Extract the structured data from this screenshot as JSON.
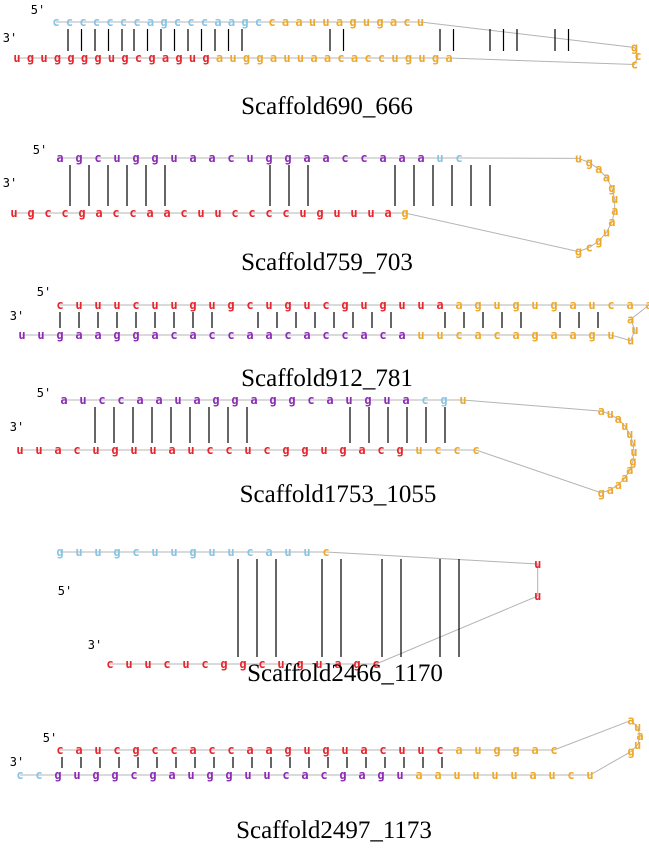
{
  "colors": {
    "red": "#e8262e",
    "purple": "#8c2bb5",
    "blue": "#88c4e4",
    "orange": "#eea92a",
    "backbone": "#b4b4b4",
    "pair": "#000000"
  },
  "structures": [
    {
      "label": "Scaffold690_666",
      "five_prime": "5'",
      "three_prime": "3'",
      "top": {
        "seq": [
          "c",
          "c",
          "c",
          "c",
          "c",
          "c",
          "c",
          "a",
          "g",
          "c",
          "c",
          "c",
          "a",
          "a",
          "g",
          "c",
          "c",
          "a",
          "a",
          "u",
          "u",
          "a",
          "g",
          "u",
          "g",
          "a",
          "c",
          "u"
        ],
        "colors": [
          "blue",
          "blue",
          "blue",
          "blue",
          "blue",
          "blue",
          "blue",
          "blue",
          "blue",
          "blue",
          "blue",
          "blue",
          "blue",
          "blue",
          "blue",
          "blue",
          "orange",
          "orange",
          "orange",
          "orange",
          "orange",
          "orange",
          "orange",
          "orange",
          "orange",
          "orange",
          "orange",
          "orange"
        ]
      },
      "bottom": {
        "seq": [
          "u",
          "g",
          "u",
          "g",
          "g",
          "g",
          "g",
          "u",
          "g",
          "c",
          "g",
          "a",
          "g",
          "u",
          "g",
          "a",
          "u",
          "g",
          "g",
          "a",
          "u",
          "u",
          "a",
          "a",
          "c",
          "a",
          "c",
          "c",
          "u",
          "g",
          "u",
          "g",
          "a"
        ],
        "colors": [
          "red",
          "red",
          "red",
          "red",
          "red",
          "red",
          "red",
          "red",
          "red",
          "red",
          "red",
          "red",
          "red",
          "red",
          "red",
          "orange",
          "orange",
          "orange",
          "orange",
          "orange",
          "orange",
          "orange",
          "orange",
          "orange",
          "orange",
          "orange",
          "orange",
          "orange",
          "orange",
          "orange",
          "orange",
          "orange",
          "orange"
        ]
      },
      "loop": {
        "seq": [
          "g",
          "c",
          "c"
        ],
        "colors": [
          "orange",
          "orange",
          "orange"
        ]
      }
    },
    {
      "label": "Scaffold759_703",
      "five_prime": "5'",
      "three_prime": "3'",
      "top": {
        "seq": [
          "a",
          "g",
          "c",
          "u",
          "g",
          "g",
          "u",
          "a",
          "a",
          "c",
          "u",
          "g",
          "g",
          "a",
          "a",
          "c",
          "c",
          "a",
          "a",
          "a",
          "u",
          "c"
        ],
        "colors": [
          "purple",
          "purple",
          "purple",
          "purple",
          "purple",
          "purple",
          "purple",
          "purple",
          "purple",
          "purple",
          "purple",
          "purple",
          "purple",
          "purple",
          "purple",
          "purple",
          "purple",
          "purple",
          "purple",
          "purple",
          "blue",
          "blue"
        ]
      },
      "bottom": {
        "seq": [
          "u",
          "g",
          "c",
          "c",
          "g",
          "a",
          "c",
          "c",
          "a",
          "a",
          "c",
          "u",
          "u",
          "c",
          "c",
          "c",
          "c",
          "u",
          "g",
          "u",
          "u",
          "u",
          "a",
          "g"
        ],
        "colors": [
          "red",
          "red",
          "red",
          "red",
          "red",
          "red",
          "red",
          "red",
          "red",
          "red",
          "red",
          "red",
          "red",
          "red",
          "red",
          "red",
          "red",
          "red",
          "red",
          "red",
          "red",
          "red",
          "red",
          "orange"
        ]
      },
      "loop": {
        "seq": [
          "u",
          "g",
          "a",
          "a",
          "g",
          "u",
          "a",
          "a",
          "u",
          "g",
          "c",
          "g"
        ],
        "colors": [
          "orange",
          "orange",
          "orange",
          "orange",
          "orange",
          "orange",
          "orange",
          "orange",
          "orange",
          "orange",
          "orange",
          "orange"
        ]
      }
    },
    {
      "label": "Scaffold912_781",
      "five_prime": "5'",
      "three_prime": "3'",
      "top": {
        "seq": [
          "c",
          "u",
          "u",
          "u",
          "c",
          "u",
          "u",
          "g",
          "u",
          "g",
          "c",
          "u",
          "g",
          "u",
          "c",
          "g",
          "u",
          "g",
          "u",
          "u",
          "a",
          "a",
          "g",
          "u",
          "g",
          "u",
          "g",
          "a",
          "u",
          "c",
          "a",
          "a"
        ],
        "colors": [
          "red",
          "red",
          "red",
          "red",
          "red",
          "red",
          "red",
          "red",
          "red",
          "red",
          "red",
          "red",
          "red",
          "red",
          "red",
          "red",
          "red",
          "red",
          "red",
          "red",
          "red",
          "orange",
          "orange",
          "orange",
          "orange",
          "orange",
          "orange",
          "orange",
          "orange",
          "orange",
          "orange",
          "orange"
        ]
      },
      "bottom": {
        "seq": [
          "u",
          "u",
          "g",
          "a",
          "a",
          "g",
          "g",
          "a",
          "c",
          "a",
          "c",
          "c",
          "a",
          "a",
          "c",
          "a",
          "c",
          "c",
          "a",
          "c",
          "a",
          "u",
          "u",
          "c",
          "a",
          "c",
          "a",
          "g",
          "a",
          "a",
          "g",
          "u"
        ],
        "colors": [
          "purple",
          "purple",
          "purple",
          "purple",
          "purple",
          "purple",
          "purple",
          "purple",
          "purple",
          "purple",
          "purple",
          "purple",
          "purple",
          "purple",
          "purple",
          "purple",
          "purple",
          "purple",
          "purple",
          "purple",
          "purple",
          "orange",
          "orange",
          "orange",
          "orange",
          "orange",
          "orange",
          "orange",
          "orange",
          "orange",
          "orange",
          "orange"
        ]
      },
      "loop": {
        "seq": [
          "a",
          "u",
          "u"
        ],
        "colors": [
          "orange",
          "orange",
          "orange"
        ]
      }
    },
    {
      "label": "Scaffold1753_1055",
      "five_prime": "5'",
      "three_prime": "3'",
      "top": {
        "seq": [
          "a",
          "u",
          "c",
          "c",
          "a",
          "a",
          "u",
          "a",
          "g",
          "g",
          "a",
          "g",
          "g",
          "c",
          "a",
          "u",
          "g",
          "u",
          "a",
          "c",
          "g",
          "u"
        ],
        "colors": [
          "purple",
          "purple",
          "purple",
          "purple",
          "purple",
          "purple",
          "purple",
          "purple",
          "purple",
          "purple",
          "purple",
          "purple",
          "purple",
          "purple",
          "purple",
          "purple",
          "purple",
          "purple",
          "purple",
          "blue",
          "blue",
          "orange"
        ]
      },
      "bottom": {
        "seq": [
          "u",
          "u",
          "a",
          "c",
          "u",
          "g",
          "u",
          "u",
          "a",
          "u",
          "c",
          "c",
          "u",
          "c",
          "g",
          "g",
          "u",
          "g",
          "a",
          "c",
          "g",
          "u",
          "c",
          "c",
          "c"
        ],
        "colors": [
          "red",
          "red",
          "red",
          "red",
          "red",
          "red",
          "red",
          "red",
          "red",
          "red",
          "red",
          "red",
          "red",
          "red",
          "red",
          "red",
          "red",
          "red",
          "red",
          "red",
          "red",
          "orange",
          "orange",
          "orange",
          "orange"
        ]
      },
      "loop": {
        "seq": [
          "a",
          "u",
          "a",
          "u",
          "u",
          "u",
          "u",
          "g",
          "a",
          "a",
          "a",
          "a",
          "g"
        ],
        "colors": [
          "orange",
          "orange",
          "orange",
          "orange",
          "orange",
          "orange",
          "orange",
          "orange",
          "orange",
          "orange",
          "orange",
          "orange",
          "orange"
        ]
      }
    },
    {
      "label": "Scaffold2466_1170",
      "five_prime": "5'",
      "three_prime": "3'",
      "top": {
        "seq": [
          "g",
          "u",
          "u",
          "g",
          "c",
          "u",
          "u",
          "g",
          "u",
          "u",
          "c",
          "a",
          "u",
          "u",
          "c"
        ],
        "colors": [
          "blue",
          "blue",
          "blue",
          "blue",
          "blue",
          "blue",
          "blue",
          "blue",
          "blue",
          "blue",
          "blue",
          "blue",
          "blue",
          "blue",
          "orange"
        ]
      },
      "bottom": {
        "seq": [
          "c",
          "u",
          "u",
          "c",
          "u",
          "c",
          "g",
          "g",
          "c",
          "u",
          "g",
          "u",
          "a",
          "g",
          "c"
        ],
        "colors": [
          "red",
          "red",
          "red",
          "red",
          "red",
          "red",
          "red",
          "red",
          "red",
          "red",
          "red",
          "red",
          "red",
          "red",
          "red"
        ]
      },
      "loop": {
        "seq": [
          "u",
          "u"
        ],
        "colors": [
          "red",
          "red"
        ]
      }
    },
    {
      "label": "Scaffold2497_1173",
      "five_prime": "5'",
      "three_prime": "3'",
      "top": {
        "seq": [
          "c",
          "a",
          "u",
          "c",
          "g",
          "c",
          "c",
          "a",
          "c",
          "c",
          "a",
          "a",
          "g",
          "u",
          "g",
          "u",
          "a",
          "c",
          "u",
          "u",
          "c",
          "a",
          "u",
          "g",
          "g",
          "a",
          "c"
        ],
        "colors": [
          "red",
          "red",
          "red",
          "red",
          "red",
          "red",
          "red",
          "red",
          "red",
          "red",
          "red",
          "red",
          "red",
          "red",
          "red",
          "red",
          "red",
          "red",
          "red",
          "red",
          "red",
          "orange",
          "orange",
          "orange",
          "orange",
          "orange",
          "orange"
        ]
      },
      "bottom": {
        "seq": [
          "c",
          "c",
          "g",
          "u",
          "g",
          "g",
          "c",
          "g",
          "a",
          "u",
          "g",
          "g",
          "u",
          "u",
          "c",
          "a",
          "c",
          "g",
          "a",
          "g",
          "u",
          "a",
          "a",
          "u",
          "u",
          "u",
          "u",
          "a",
          "u",
          "c",
          "u"
        ],
        "colors": [
          "blue",
          "blue",
          "purple",
          "purple",
          "purple",
          "purple",
          "purple",
          "purple",
          "purple",
          "purple",
          "purple",
          "purple",
          "purple",
          "purple",
          "purple",
          "purple",
          "purple",
          "purple",
          "purple",
          "purple",
          "purple",
          "orange",
          "orange",
          "orange",
          "orange",
          "orange",
          "orange",
          "orange",
          "orange",
          "orange",
          "orange"
        ]
      },
      "loop": {
        "seq": [
          "a",
          "u",
          "a",
          "u",
          "g"
        ],
        "colors": [
          "orange",
          "orange",
          "orange",
          "orange",
          "orange"
        ]
      }
    }
  ]
}
